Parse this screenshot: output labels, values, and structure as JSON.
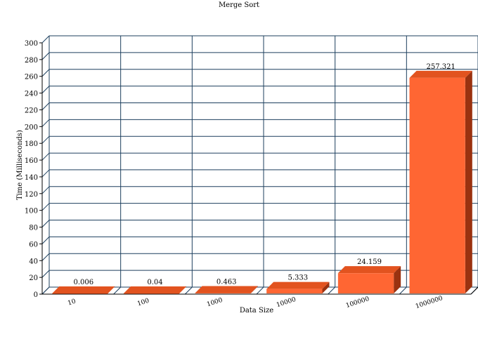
{
  "chart_data": {
    "type": "bar",
    "title": "Merge Sort",
    "xlabel": "Data Size",
    "ylabel": "Time (Milliseconds)",
    "categories": [
      "10",
      "100",
      "1000",
      "10000",
      "100000",
      "1000000"
    ],
    "values": [
      0.006,
      0.04,
      0.463,
      5.333,
      24.159,
      257.321
    ],
    "data_labels": [
      "0.006",
      "0.04",
      "0.463",
      "5.333",
      "24.159",
      "257.321"
    ],
    "ylim": [
      0,
      300
    ],
    "yticks": [
      0,
      20,
      40,
      60,
      80,
      100,
      120,
      140,
      160,
      180,
      200,
      220,
      240,
      260,
      280,
      300
    ],
    "grid": true,
    "legend": "none",
    "colors": {
      "bar_front": "#ff6633",
      "bar_top": "#e2531f",
      "bar_side": "#9a3210",
      "grid": "#1d3f5e",
      "axis": "#000000"
    }
  }
}
